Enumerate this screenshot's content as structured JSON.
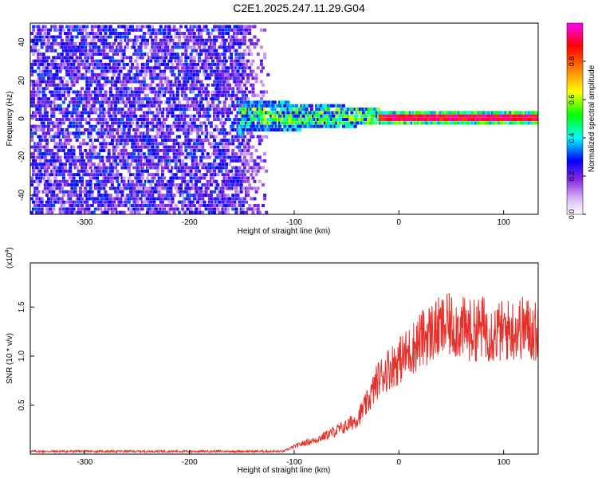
{
  "title": "C2E1.2025.247.11.29.G04",
  "colors": {
    "spectrogram_low": "#e6d3fa",
    "spectrogram_mid": "#7a1cff",
    "snr_line": "#e8302a",
    "axis": "#000000"
  },
  "chart_data": [
    {
      "type": "heatmap",
      "title": "C2E1.2025.247.11.29.G04",
      "xlabel": "Height of straight line (km)",
      "ylabel": "Frequency (Hz)",
      "xlim": [
        -352,
        133
      ],
      "ylim": [
        -50,
        50
      ],
      "xticks": [
        -300,
        -200,
        -100,
        0,
        100
      ],
      "xtick_labels": [
        "-300",
        "-200",
        "-100",
        "0",
        "100"
      ],
      "yticks": [
        -40,
        -20,
        0,
        20,
        40
      ],
      "ytick_labels": [
        "-40",
        "-20",
        "0",
        "20",
        "40"
      ],
      "colorbar": {
        "label": "Normalized spectral amplitude",
        "range": [
          0,
          1
        ],
        "ticks": [
          0.0,
          0.2,
          0.4,
          0.6,
          0.8
        ],
        "tick_labels": [
          "0.0",
          "0.2",
          "0.4",
          "0.6",
          "0.8"
        ],
        "colormap": [
          "#ffffff",
          "#8a2be2",
          "#0000ff",
          "#00ffff",
          "#00ff00",
          "#ffff00",
          "#ff8000",
          "#ff0000",
          "#ff00ff"
        ]
      },
      "regions": [
        {
          "x_range": [
            -352,
            -125
          ],
          "freq_range": [
            -50,
            50
          ],
          "amplitude": [
            0.05,
            0.3
          ],
          "description": "broadband noise"
        },
        {
          "x_range": [
            -155,
            -20
          ],
          "freq_range": [
            -10,
            10
          ],
          "amplitude": [
            0.2,
            0.55
          ],
          "description": "emerging signal"
        },
        {
          "x_range": [
            -20,
            133
          ],
          "freq_center": 1,
          "freq_range": [
            -3,
            4
          ],
          "amplitude": [
            0.6,
            1.0
          ],
          "description": "narrow carrier"
        }
      ]
    },
    {
      "type": "line",
      "xlabel": "Height of straight line (km)",
      "ylabel": "SNR (10 * v/v)",
      "y_multiplier_label": "(x10",
      "y_multiplier_exp": "4",
      "y_multiplier_close": ")",
      "xlim": [
        -352,
        133
      ],
      "ylim": [
        0,
        1.95
      ],
      "xticks": [
        -300,
        -200,
        -100,
        0,
        100
      ],
      "xtick_labels": [
        "-300",
        "-200",
        "-100",
        "0",
        "100"
      ],
      "yticks": [
        0.5,
        1.0,
        1.5
      ],
      "ytick_labels": [
        "0.5",
        "1.0",
        "1.5"
      ],
      "series": [
        {
          "color": "#e8302a",
          "x": [
            -352,
            -300,
            -200,
            -110,
            -100,
            -90,
            -80,
            -70,
            -60,
            -50,
            -40,
            -30,
            -20,
            -10,
            0,
            10,
            20,
            30,
            40,
            50,
            60,
            70,
            80,
            90,
            100,
            110,
            120,
            133
          ],
          "y": [
            0.03,
            0.03,
            0.03,
            0.03,
            0.08,
            0.12,
            0.15,
            0.2,
            0.25,
            0.3,
            0.38,
            0.55,
            0.8,
            0.92,
            1.0,
            1.1,
            1.22,
            1.3,
            1.35,
            1.38,
            1.35,
            1.32,
            1.36,
            1.3,
            1.32,
            1.34,
            1.36,
            1.3
          ]
        }
      ]
    }
  ]
}
